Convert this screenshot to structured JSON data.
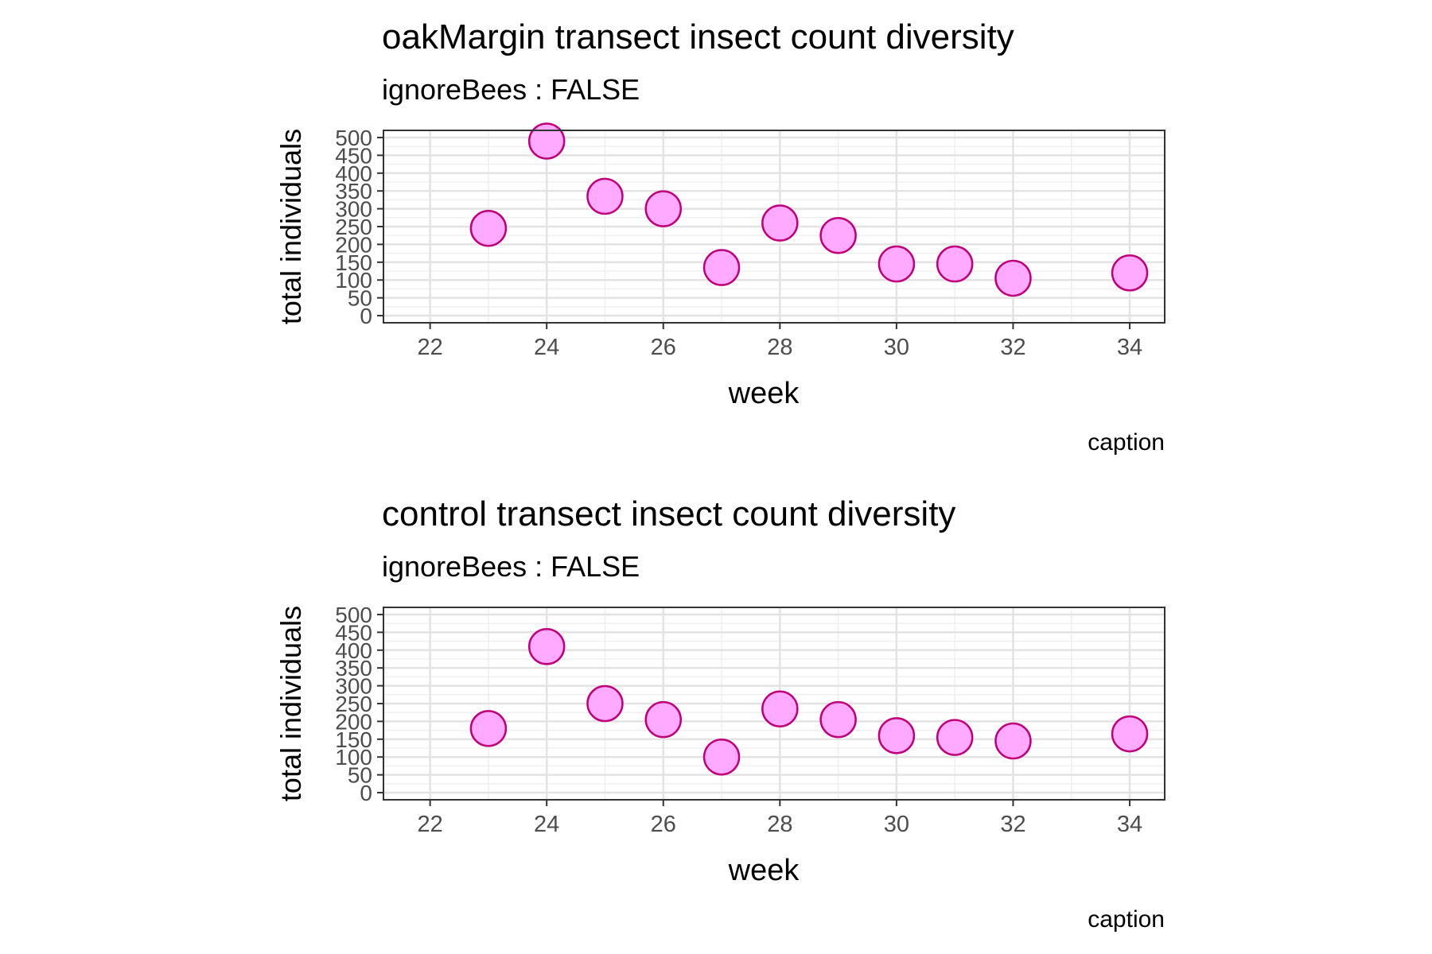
{
  "chart_data": [
    {
      "type": "scatter",
      "title": "oakMargin transect insect count diversity",
      "subtitle": "ignoreBees : FALSE",
      "caption": "caption",
      "xlabel": "week",
      "ylabel": "total individuals",
      "xlim": [
        21.2,
        34.6
      ],
      "ylim": [
        -20,
        520
      ],
      "xticks": [
        22,
        24,
        26,
        28,
        30,
        32,
        34
      ],
      "yticks": [
        0,
        50,
        100,
        150,
        200,
        250,
        300,
        350,
        400,
        450,
        500
      ],
      "grid": true,
      "point_fill": "#ffaaff",
      "point_stroke": "#c0007a",
      "x": [
        23,
        24,
        25,
        26,
        27,
        28,
        29,
        30,
        31,
        32,
        34
      ],
      "y": [
        245,
        490,
        335,
        300,
        135,
        260,
        225,
        145,
        145,
        105,
        120
      ]
    },
    {
      "type": "scatter",
      "title": "control transect insect count diversity",
      "subtitle": "ignoreBees : FALSE",
      "caption": "caption",
      "xlabel": "week",
      "ylabel": "total individuals",
      "xlim": [
        21.2,
        34.6
      ],
      "ylim": [
        -20,
        520
      ],
      "xticks": [
        22,
        24,
        26,
        28,
        30,
        32,
        34
      ],
      "yticks": [
        0,
        50,
        100,
        150,
        200,
        250,
        300,
        350,
        400,
        450,
        500
      ],
      "grid": true,
      "point_fill": "#ffaaff",
      "point_stroke": "#c0007a",
      "x": [
        23,
        24,
        25,
        26,
        27,
        28,
        29,
        30,
        31,
        32,
        34
      ],
      "y": [
        180,
        410,
        250,
        205,
        100,
        235,
        205,
        160,
        155,
        145,
        165
      ]
    }
  ]
}
